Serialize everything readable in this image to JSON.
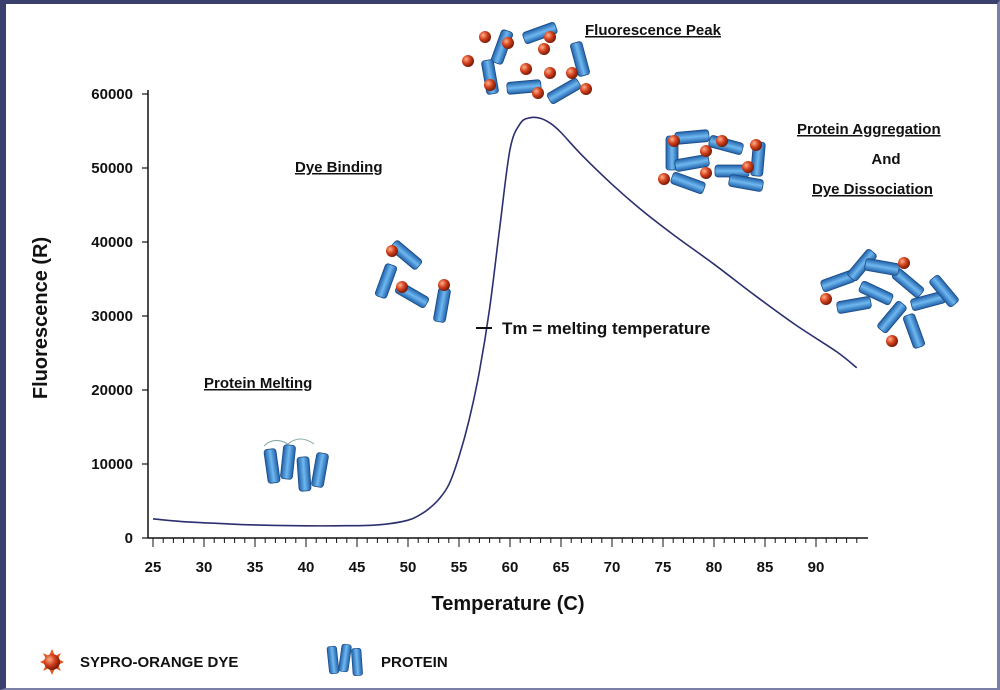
{
  "chart_data": {
    "type": "line",
    "xlabel": "Temperature (C)",
    "ylabel": "Fluorescence (R)",
    "xlim": [
      25,
      94
    ],
    "ylim": [
      0,
      62000
    ],
    "x_ticks": [
      "25",
      "30",
      "35",
      "40",
      "45",
      "50",
      "55",
      "60",
      "65",
      "70",
      "75",
      "80",
      "85",
      "90"
    ],
    "y_ticks": [
      "0",
      "10000",
      "20000",
      "30000",
      "40000",
      "50000",
      "60000"
    ],
    "grid": false,
    "series": [
      {
        "color": "#2b2f6e",
        "points": [
          [
            25,
            2600
          ],
          [
            28,
            2200
          ],
          [
            31,
            2000
          ],
          [
            34,
            1800
          ],
          [
            37,
            1700
          ],
          [
            40,
            1650
          ],
          [
            43,
            1650
          ],
          [
            46,
            1700
          ],
          [
            48,
            1900
          ],
          [
            50,
            2400
          ],
          [
            51,
            3000
          ],
          [
            52,
            3900
          ],
          [
            53,
            5200
          ],
          [
            54,
            7200
          ],
          [
            55,
            11000
          ],
          [
            56,
            16000
          ],
          [
            57,
            22500
          ],
          [
            58,
            31000
          ],
          [
            59,
            42000
          ],
          [
            60,
            52500
          ],
          [
            61,
            56000
          ],
          [
            62,
            56800
          ],
          [
            63,
            56700
          ],
          [
            64,
            56000
          ],
          [
            65,
            54800
          ],
          [
            67,
            51800
          ],
          [
            70,
            47800
          ],
          [
            73,
            44200
          ],
          [
            76,
            41000
          ],
          [
            80,
            37000
          ],
          [
            84,
            32800
          ],
          [
            88,
            28800
          ],
          [
            92,
            25200
          ],
          [
            94,
            23000
          ]
        ]
      }
    ],
    "annotations": {
      "fluorescence_peak": "Fluorescence Peak",
      "dye_binding": "Dye Binding",
      "protein_melting": "Protein Melting",
      "protein_aggregation": "Protein Aggregation",
      "and": "And",
      "dye_dissociation": "Dye Dissociation",
      "tm": "Tm = melting temperature"
    }
  },
  "legend": {
    "dye_label": "SYPRO-ORANGE DYE",
    "protein_label": "PROTEIN"
  },
  "colors": {
    "curve": "#2b2f6e",
    "protein": "#3a8fd4",
    "dye": "#c0391a"
  }
}
